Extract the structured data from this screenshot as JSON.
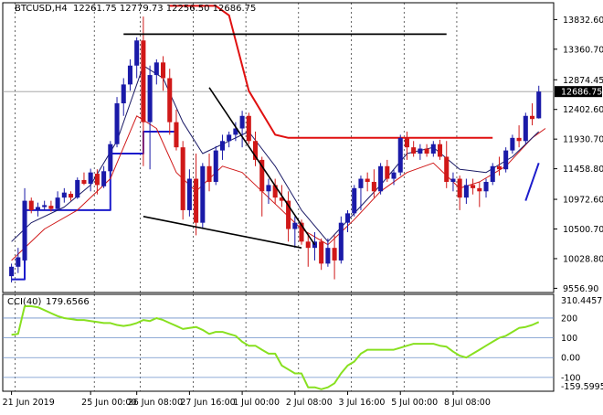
{
  "header": {
    "symbol": "BTCUSD,H4",
    "ohlc": "12261.75 12779.73 12256.50 12686.75"
  },
  "indicator": {
    "name": "CCI(40)",
    "value": "179.6566",
    "levels": [
      200,
      100,
      0,
      -100
    ],
    "level_labels": [
      "200",
      "100",
      "0.00",
      "-100"
    ],
    "top_label": "310.4457",
    "bottom_label": "-159.5995"
  },
  "colors": {
    "bull": "#1a1aa8",
    "bear": "#d01818",
    "ma_fast": "#1a1a66",
    "ma_slow": "#d01818",
    "step_blue": "#1c1ccc",
    "step_red": "#e01010",
    "trend": "#000000",
    "cci": "#88e020",
    "level_line": "#6b8fc8",
    "current_price_bg": "#000000",
    "current_price_fg": "#ffffff"
  },
  "chart_data": {
    "type": "candlestick",
    "price_axis": {
      "ticks": [
        13832.6,
        13360.7,
        12874.45,
        12402.6,
        11930.7,
        11458.8,
        10972.6,
        10500.7,
        10028.8,
        9556.9
      ],
      "tick_labels": [
        "13832.60",
        "13360.70",
        "12874.45",
        "12402.60",
        "11930.70",
        "11458.80",
        "10972.60",
        "10500.70",
        "10028.80",
        "9556.90"
      ],
      "ylim": [
        9490,
        14100
      ],
      "current_price": 12686.75,
      "current_label": "12686.75"
    },
    "time_axis": {
      "labels": [
        "21 Jun 2019",
        "25 Jun 00:00",
        "26 Jun 08:00",
        "27 Jun 16:00",
        "1 Jul 00:00",
        "2 Jul 08:00",
        "3 Jul 16:00",
        "5 Jul 00:00",
        "8 Jul 08:00"
      ],
      "label_index": [
        0,
        12,
        19,
        27,
        35,
        43,
        51,
        59,
        67
      ]
    },
    "candles": [
      {
        "o": 9750,
        "h": 9950,
        "l": 9650,
        "c": 9900
      },
      {
        "o": 9900,
        "h": 10200,
        "l": 9800,
        "c": 10050
      },
      {
        "o": 10000,
        "h": 11150,
        "l": 9950,
        "c": 10950
      },
      {
        "o": 10950,
        "h": 11000,
        "l": 10750,
        "c": 10800
      },
      {
        "o": 10800,
        "h": 10920,
        "l": 10700,
        "c": 10850
      },
      {
        "o": 10850,
        "h": 10950,
        "l": 10800,
        "c": 10880
      },
      {
        "o": 10870,
        "h": 10950,
        "l": 10780,
        "c": 10820
      },
      {
        "o": 10820,
        "h": 11100,
        "l": 10800,
        "c": 11000
      },
      {
        "o": 11000,
        "h": 11150,
        "l": 10920,
        "c": 11080
      },
      {
        "o": 11060,
        "h": 11100,
        "l": 10950,
        "c": 11000
      },
      {
        "o": 11000,
        "h": 11320,
        "l": 10980,
        "c": 11280
      },
      {
        "o": 11280,
        "h": 11400,
        "l": 11200,
        "c": 11220
      },
      {
        "o": 11220,
        "h": 11460,
        "l": 11100,
        "c": 11400
      },
      {
        "o": 11380,
        "h": 11450,
        "l": 11050,
        "c": 11200
      },
      {
        "o": 11180,
        "h": 11500,
        "l": 11150,
        "c": 11420
      },
      {
        "o": 11420,
        "h": 11900,
        "l": 11350,
        "c": 11850
      },
      {
        "o": 11850,
        "h": 12600,
        "l": 11800,
        "c": 12500
      },
      {
        "o": 12500,
        "h": 12900,
        "l": 12300,
        "c": 12800
      },
      {
        "o": 12800,
        "h": 13200,
        "l": 12700,
        "c": 13100
      },
      {
        "o": 13100,
        "h": 13550,
        "l": 12900,
        "c": 13500
      },
      {
        "o": 13500,
        "h": 13880,
        "l": 11500,
        "c": 12200
      },
      {
        "o": 12200,
        "h": 13100,
        "l": 11450,
        "c": 12950
      },
      {
        "o": 12950,
        "h": 13200,
        "l": 12800,
        "c": 13150
      },
      {
        "o": 13150,
        "h": 13250,
        "l": 12700,
        "c": 12900
      },
      {
        "o": 12900,
        "h": 13050,
        "l": 12000,
        "c": 12200
      },
      {
        "o": 12200,
        "h": 12400,
        "l": 11750,
        "c": 11800
      },
      {
        "o": 11800,
        "h": 11900,
        "l": 10650,
        "c": 10800
      },
      {
        "o": 10800,
        "h": 11450,
        "l": 10700,
        "c": 11300
      },
      {
        "o": 11300,
        "h": 11700,
        "l": 10400,
        "c": 10600
      },
      {
        "o": 10600,
        "h": 11550,
        "l": 10500,
        "c": 11500
      },
      {
        "o": 11500,
        "h": 11700,
        "l": 11100,
        "c": 11250
      },
      {
        "o": 11250,
        "h": 11820,
        "l": 11200,
        "c": 11750
      },
      {
        "o": 11750,
        "h": 12000,
        "l": 11600,
        "c": 11900
      },
      {
        "o": 11900,
        "h": 12050,
        "l": 11800,
        "c": 12000
      },
      {
        "o": 12000,
        "h": 12200,
        "l": 11900,
        "c": 12100
      },
      {
        "o": 12100,
        "h": 12380,
        "l": 11800,
        "c": 12300
      },
      {
        "o": 12300,
        "h": 12350,
        "l": 11850,
        "c": 11900
      },
      {
        "o": 11900,
        "h": 12050,
        "l": 11500,
        "c": 11600
      },
      {
        "o": 11600,
        "h": 11650,
        "l": 10700,
        "c": 11100
      },
      {
        "o": 11100,
        "h": 11300,
        "l": 10900,
        "c": 11200
      },
      {
        "o": 11200,
        "h": 11300,
        "l": 10900,
        "c": 11000
      },
      {
        "o": 11000,
        "h": 11200,
        "l": 10850,
        "c": 10950
      },
      {
        "o": 10950,
        "h": 11100,
        "l": 10300,
        "c": 10500
      },
      {
        "o": 10500,
        "h": 10700,
        "l": 10200,
        "c": 10600
      },
      {
        "o": 10600,
        "h": 10650,
        "l": 10250,
        "c": 10300
      },
      {
        "o": 10300,
        "h": 10400,
        "l": 9900,
        "c": 10200
      },
      {
        "o": 10200,
        "h": 10450,
        "l": 10000,
        "c": 10300
      },
      {
        "o": 10300,
        "h": 10350,
        "l": 9850,
        "c": 9950
      },
      {
        "o": 9950,
        "h": 10350,
        "l": 9900,
        "c": 10200
      },
      {
        "o": 10200,
        "h": 10400,
        "l": 9700,
        "c": 10000
      },
      {
        "o": 10000,
        "h": 10700,
        "l": 9950,
        "c": 10600
      },
      {
        "o": 10600,
        "h": 10800,
        "l": 10450,
        "c": 10750
      },
      {
        "o": 10750,
        "h": 11200,
        "l": 10700,
        "c": 11150
      },
      {
        "o": 11150,
        "h": 11350,
        "l": 10800,
        "c": 11300
      },
      {
        "o": 11300,
        "h": 11400,
        "l": 11100,
        "c": 11250
      },
      {
        "o": 11250,
        "h": 11450,
        "l": 11000,
        "c": 11100
      },
      {
        "o": 11100,
        "h": 11550,
        "l": 11050,
        "c": 11500
      },
      {
        "o": 11500,
        "h": 11600,
        "l": 11250,
        "c": 11300
      },
      {
        "o": 11300,
        "h": 11450,
        "l": 11200,
        "c": 11400
      },
      {
        "o": 11400,
        "h": 12000,
        "l": 11350,
        "c": 11950
      },
      {
        "o": 11950,
        "h": 12050,
        "l": 11600,
        "c": 11800
      },
      {
        "o": 11800,
        "h": 11900,
        "l": 11650,
        "c": 11700
      },
      {
        "o": 11700,
        "h": 11850,
        "l": 11600,
        "c": 11780
      },
      {
        "o": 11780,
        "h": 11850,
        "l": 11650,
        "c": 11700
      },
      {
        "o": 11700,
        "h": 11900,
        "l": 11650,
        "c": 11850
      },
      {
        "o": 11850,
        "h": 11920,
        "l": 11600,
        "c": 11650
      },
      {
        "o": 11650,
        "h": 11900,
        "l": 11150,
        "c": 11250
      },
      {
        "o": 11250,
        "h": 11400,
        "l": 11100,
        "c": 11300
      },
      {
        "o": 11300,
        "h": 11350,
        "l": 10800,
        "c": 11000
      },
      {
        "o": 11000,
        "h": 11300,
        "l": 10900,
        "c": 11200
      },
      {
        "o": 11200,
        "h": 11300,
        "l": 11050,
        "c": 11150
      },
      {
        "o": 11150,
        "h": 11250,
        "l": 10850,
        "c": 11100
      },
      {
        "o": 11100,
        "h": 11300,
        "l": 11000,
        "c": 11250
      },
      {
        "o": 11250,
        "h": 11550,
        "l": 11200,
        "c": 11500
      },
      {
        "o": 11500,
        "h": 11650,
        "l": 11350,
        "c": 11450
      },
      {
        "o": 11450,
        "h": 11800,
        "l": 11400,
        "c": 11750
      },
      {
        "o": 11750,
        "h": 12000,
        "l": 11700,
        "c": 11950
      },
      {
        "o": 11950,
        "h": 12150,
        "l": 11800,
        "c": 11900
      },
      {
        "o": 11900,
        "h": 12350,
        "l": 11850,
        "c": 12300
      },
      {
        "o": 12300,
        "h": 12500,
        "l": 12150,
        "c": 12250
      },
      {
        "o": 12261.75,
        "h": 12779.73,
        "l": 12256.5,
        "c": 12686.75
      }
    ],
    "overlays": {
      "horizontal_lines": [
        {
          "name": "resistance",
          "y": 13600,
          "from": 17,
          "to": 66
        },
        {
          "name": "support",
          "y": 11950,
          "from": 38,
          "to": 73
        }
      ],
      "trend_lines": [
        {
          "name": "falling-trendline",
          "points": [
            [
              30,
              12750
            ],
            [
              46,
              10250
            ]
          ]
        },
        {
          "name": "lower-wedge-line",
          "points": [
            [
              20,
              10700
            ],
            [
              44,
              10200
            ]
          ]
        }
      ],
      "blue_step": [
        [
          0,
          9700
        ],
        [
          2,
          10800
        ],
        [
          14,
          10800
        ],
        [
          15,
          11700
        ],
        [
          19,
          11700
        ],
        [
          20,
          12050
        ],
        [
          24,
          12050
        ],
        [
          25,
          11950
        ]
      ],
      "red_step": [
        [
          24,
          14050
        ],
        [
          31,
          14050
        ],
        [
          33,
          13900
        ],
        [
          36,
          12700
        ],
        [
          40,
          12000
        ],
        [
          42,
          11950
        ],
        [
          73,
          11950
        ]
      ],
      "ma_slow": [
        [
          0,
          10000
        ],
        [
          5,
          10500
        ],
        [
          10,
          10800
        ],
        [
          15,
          11300
        ],
        [
          19,
          12300
        ],
        [
          22,
          12100
        ],
        [
          25,
          11400
        ],
        [
          28,
          11100
        ],
        [
          32,
          11500
        ],
        [
          35,
          11400
        ],
        [
          39,
          11000
        ],
        [
          44,
          10500
        ],
        [
          48,
          10250
        ],
        [
          52,
          10650
        ],
        [
          56,
          11100
        ],
        [
          60,
          11400
        ],
        [
          64,
          11550
        ],
        [
          68,
          11150
        ],
        [
          71,
          11250
        ],
        [
          75,
          11500
        ],
        [
          79,
          11950
        ],
        [
          81,
          12100
        ]
      ],
      "ma_fast": [
        [
          0,
          10300
        ],
        [
          3,
          10600
        ],
        [
          8,
          10850
        ],
        [
          12,
          11200
        ],
        [
          16,
          11900
        ],
        [
          20,
          13100
        ],
        [
          23,
          12900
        ],
        [
          26,
          12200
        ],
        [
          29,
          11700
        ],
        [
          33,
          11900
        ],
        [
          36,
          12050
        ],
        [
          40,
          11500
        ],
        [
          44,
          10800
        ],
        [
          48,
          10300
        ],
        [
          52,
          10750
        ],
        [
          56,
          11200
        ],
        [
          60,
          11700
        ],
        [
          64,
          11800
        ],
        [
          68,
          11450
        ],
        [
          72,
          11400
        ],
        [
          76,
          11650
        ],
        [
          80,
          12050
        ]
      ],
      "blue_tick": [
        [
          78,
          10950
        ],
        [
          80,
          11550
        ]
      ]
    },
    "cci": {
      "ylim": [
        -170,
        320
      ],
      "values": [
        115,
        120,
        260,
        260,
        255,
        240,
        225,
        210,
        200,
        195,
        190,
        190,
        185,
        180,
        175,
        175,
        165,
        160,
        165,
        175,
        190,
        185,
        200,
        190,
        175,
        160,
        145,
        150,
        155,
        140,
        120,
        130,
        130,
        120,
        110,
        80,
        60,
        60,
        40,
        20,
        20,
        -40,
        -60,
        -80,
        -80,
        -150,
        -150,
        -160,
        -150,
        -130,
        -80,
        -40,
        -20,
        20,
        40,
        40,
        40,
        40,
        40,
        50,
        60,
        70,
        70,
        70,
        70,
        60,
        55,
        30,
        10,
        0,
        20,
        40,
        60,
        80,
        100,
        110,
        130,
        150,
        155,
        165,
        180
      ]
    }
  }
}
